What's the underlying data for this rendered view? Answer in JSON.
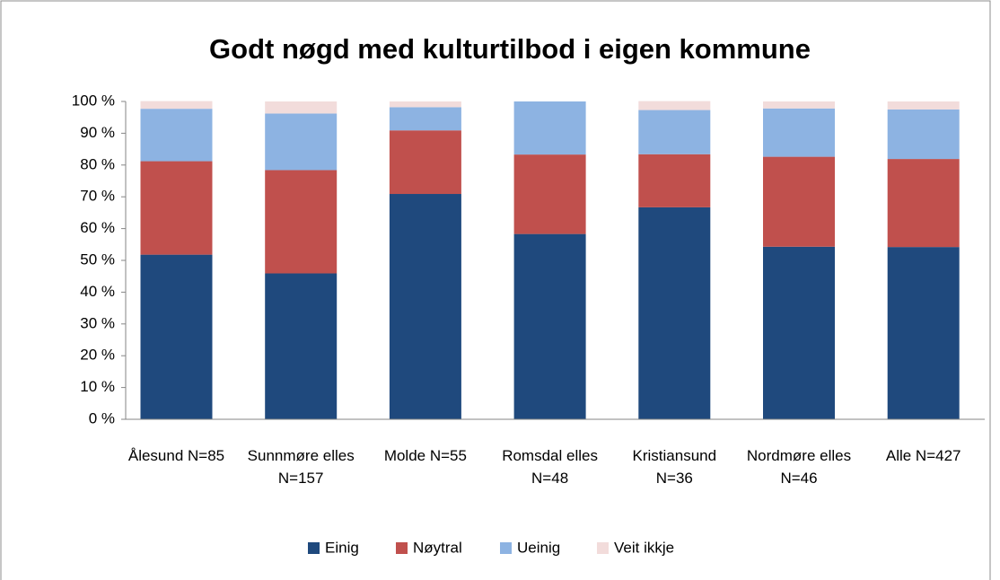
{
  "chart_data": {
    "type": "stacked_bar_percent",
    "title": "Godt nøgd med kulturtilbod i eigen kommune",
    "categories": [
      "Ålesund N=85",
      "Sunnmøre elles N=157",
      "Molde N=55",
      "Romsdal elles N=48",
      "Kristiansund N=36",
      "Nordmøre elles N=46",
      "Alle N=427"
    ],
    "series": [
      {
        "name": "Einig",
        "color": "#1f497d",
        "values": [
          51.8,
          45.9,
          70.9,
          58.3,
          66.7,
          54.3,
          54.2
        ]
      },
      {
        "name": "Nøytral",
        "color": "#c0504d",
        "values": [
          29.4,
          32.5,
          20.0,
          25.0,
          16.7,
          28.3,
          27.7
        ]
      },
      {
        "name": "Ueinig",
        "color": "#8db3e2",
        "values": [
          16.5,
          17.8,
          7.3,
          16.7,
          13.9,
          15.2,
          15.6
        ]
      },
      {
        "name": "Veit ikkje",
        "color": "#f2dcdb",
        "values": [
          2.4,
          3.8,
          1.8,
          0,
          2.8,
          2.2,
          2.5
        ]
      }
    ],
    "ylim": [
      0,
      100
    ],
    "yticks": [
      {
        "value": 0,
        "label": "0 %"
      },
      {
        "value": 10,
        "label": "10 %"
      },
      {
        "value": 20,
        "label": "20 %"
      },
      {
        "value": 30,
        "label": "30 %"
      },
      {
        "value": 40,
        "label": "40 %"
      },
      {
        "value": 50,
        "label": "50 %"
      },
      {
        "value": 60,
        "label": "60 %"
      },
      {
        "value": 70,
        "label": "70 %"
      },
      {
        "value": 80,
        "label": "80 %"
      },
      {
        "value": 90,
        "label": "90 %"
      },
      {
        "value": 100,
        "label": "100 %"
      }
    ],
    "grid": false,
    "legend": "bottom"
  }
}
